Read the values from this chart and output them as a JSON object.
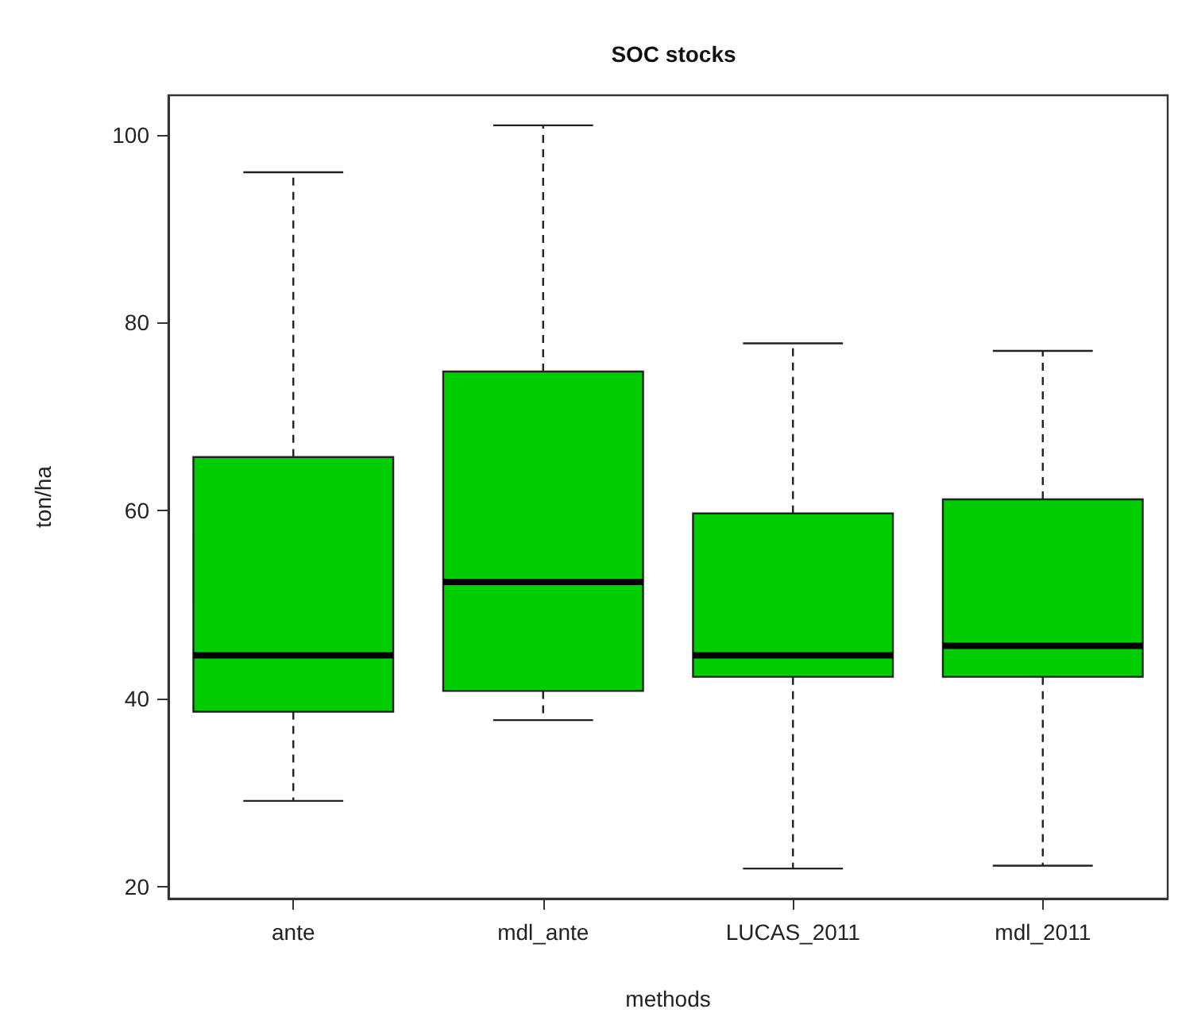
{
  "chart_data": {
    "type": "box",
    "title": "SOC stocks",
    "xlabel": "methods",
    "ylabel": "ton/ha",
    "categories": [
      "ante",
      "mdl_ante",
      "LUCAS_2011",
      "mdl_2011"
    ],
    "color": "#00cc00",
    "boxes": [
      {
        "low": 29.1,
        "q1": 38.6,
        "median": 44.6,
        "q3": 65.7,
        "high": 96
      },
      {
        "low": 37.7,
        "q1": 40.8,
        "median": 52.4,
        "q3": 74.8,
        "high": 101
      },
      {
        "low": 21.9,
        "q1": 42.3,
        "median": 44.6,
        "q3": 59.7,
        "high": 77.8
      },
      {
        "low": 22.2,
        "q1": 42.3,
        "median": 45.6,
        "q3": 61.2,
        "high": 77
      }
    ],
    "ylim": [
      18.7,
      104.2
    ],
    "yticks": [
      20,
      40,
      60,
      80,
      100
    ],
    "grid": false
  }
}
